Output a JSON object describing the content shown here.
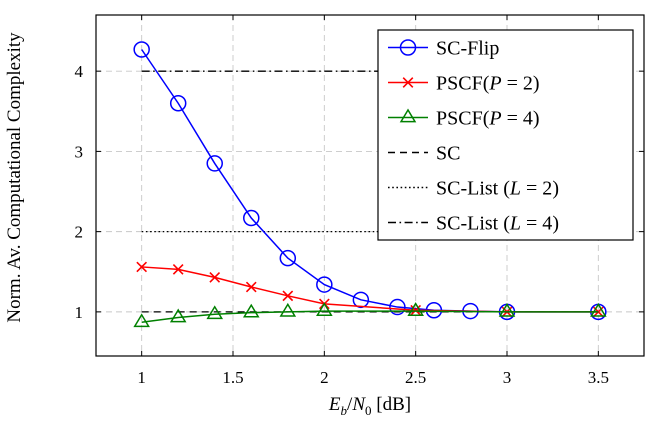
{
  "chart_data": {
    "type": "line",
    "title": "",
    "xlabel": "E_b/N_0 [dB]",
    "xlabel_parts": {
      "E": "E",
      "b": "b",
      "slash": "/",
      "N": "N",
      "zero": "0",
      "unit": " [dB]"
    },
    "ylabel": "Norm. Av. Computational Complexity",
    "xlim": [
      0.75,
      3.75
    ],
    "ylim": [
      0.45,
      4.7
    ],
    "xticks": [
      1,
      1.5,
      2,
      2.5,
      3,
      3.5
    ],
    "xtick_labels": [
      "1",
      "1.5",
      "2",
      "2.5",
      "3",
      "3.5"
    ],
    "yticks": [
      1,
      2,
      3,
      4
    ],
    "ytick_labels": [
      "1",
      "2",
      "3",
      "4"
    ],
    "grid": true,
    "legend_position": "top-right",
    "series": [
      {
        "name": "SC-Flip",
        "color": "#0000ff",
        "marker": "circle",
        "dash": "solid",
        "x": [
          1,
          1.2,
          1.4,
          1.6,
          1.8,
          2,
          2.2,
          2.4,
          2.6,
          2.8,
          3,
          3.5
        ],
        "y": [
          4.27,
          3.6,
          2.85,
          2.17,
          1.67,
          1.34,
          1.15,
          1.06,
          1.02,
          1.01,
          1.0,
          1.0
        ]
      },
      {
        "name": "PSCF(P = 2)",
        "color": "#ff0000",
        "marker": "cross",
        "dash": "solid",
        "x": [
          1,
          1.2,
          1.4,
          1.6,
          1.8,
          2,
          2.5,
          3,
          3.5
        ],
        "y": [
          1.56,
          1.53,
          1.43,
          1.31,
          1.2,
          1.1,
          1.02,
          1.0,
          1.0
        ]
      },
      {
        "name": "PSCF(P = 4)",
        "color": "#008000",
        "marker": "triangle",
        "dash": "solid",
        "x": [
          1,
          1.2,
          1.4,
          1.6,
          1.8,
          2,
          2.5,
          3,
          3.5
        ],
        "y": [
          0.87,
          0.93,
          0.97,
          0.99,
          1.0,
          1.01,
          1.01,
          1.0,
          1.0
        ]
      },
      {
        "name": "SC",
        "color": "#000000",
        "marker": "none",
        "dash": "dashed",
        "x": [
          1,
          3.5
        ],
        "y": [
          1,
          1
        ]
      },
      {
        "name": "SC-List (L = 2)",
        "color": "#000000",
        "marker": "none",
        "dash": "dotted",
        "x": [
          1,
          3.5
        ],
        "y": [
          2,
          2
        ]
      },
      {
        "name": "SC-List (L = 4)",
        "color": "#000000",
        "marker": "none",
        "dash": "dashdot",
        "x": [
          1,
          3.5
        ],
        "y": [
          4,
          4
        ]
      }
    ],
    "legend_entries": [
      {
        "text": "SC-Flip"
      },
      {
        "prefix": "PSCF(",
        "var": "P",
        "eq": " = 2",
        "suffix": ")"
      },
      {
        "prefix": "PSCF(",
        "var": "P",
        "eq": " = 4",
        "suffix": ")"
      },
      {
        "text": "SC"
      },
      {
        "prefix": "SC-List (",
        "var": "L",
        "eq": " = 2",
        "suffix": ")"
      },
      {
        "prefix": "SC-List (",
        "var": "L",
        "eq": " = 4",
        "suffix": ")"
      }
    ]
  }
}
